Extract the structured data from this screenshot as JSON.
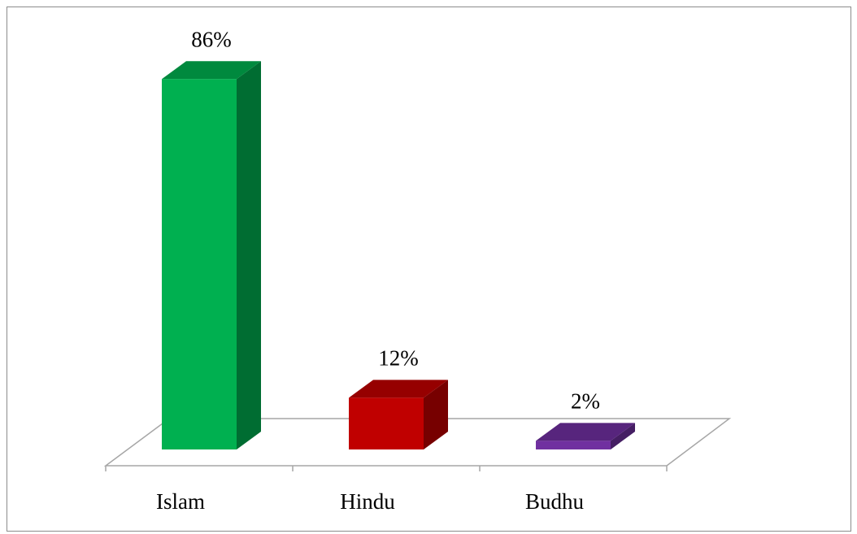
{
  "chart_data": {
    "type": "bar3d",
    "categories": [
      "Islam",
      "Hindu",
      "Budhu"
    ],
    "values": [
      86,
      12,
      2
    ],
    "value_labels": [
      "86%",
      "12%",
      "2%"
    ],
    "colors": [
      "#00b050",
      "#c00000",
      "#7030a0"
    ]
  }
}
